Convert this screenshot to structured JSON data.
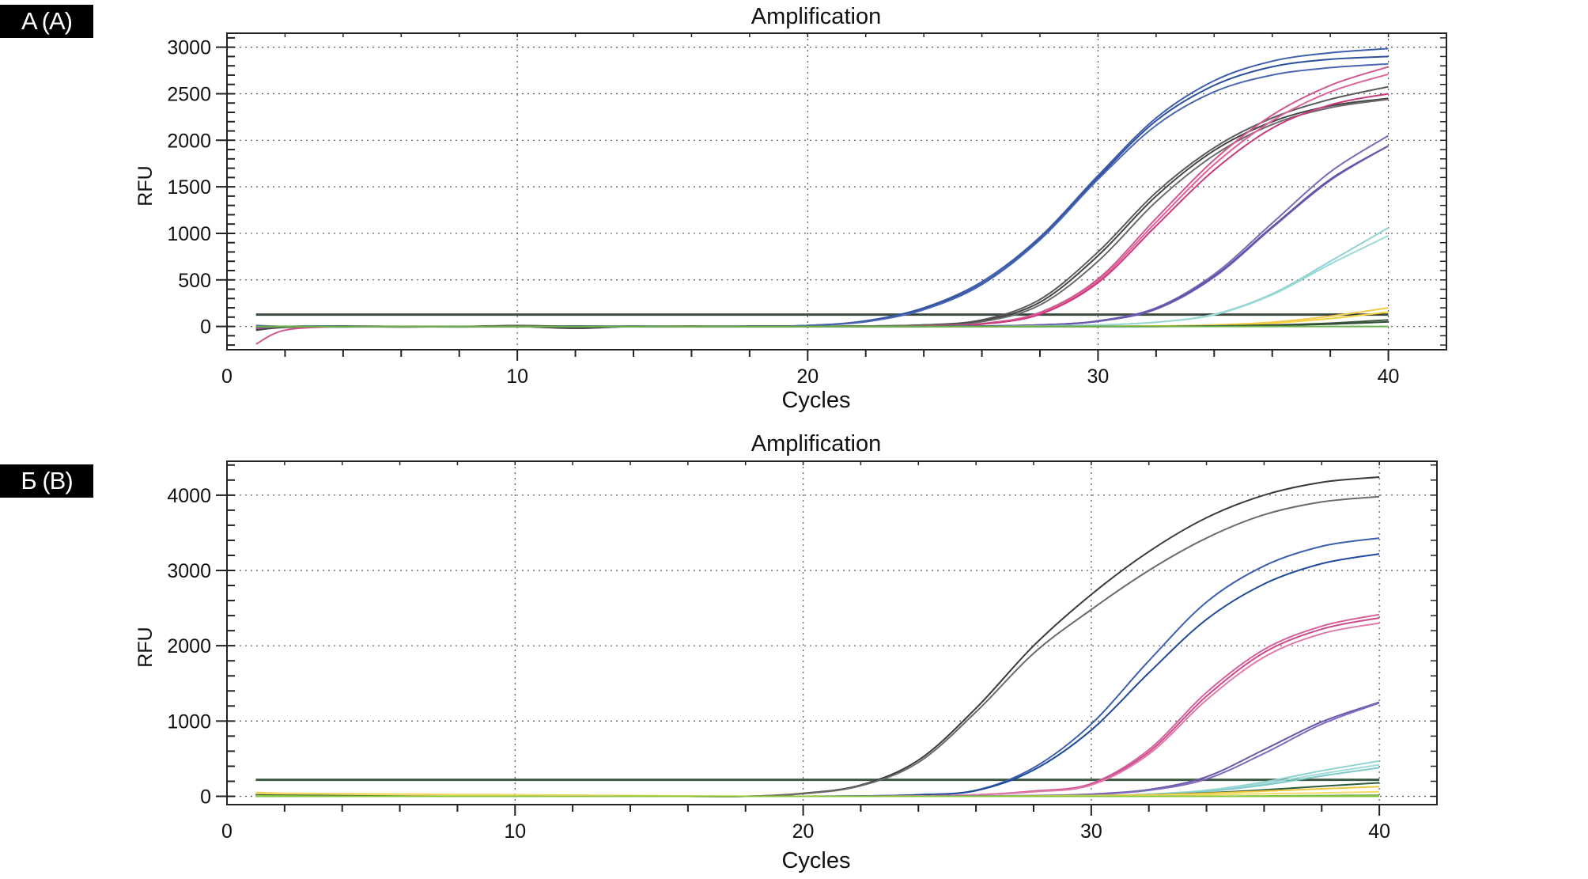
{
  "panels": [
    {
      "label": "A (A)"
    },
    {
      "label": "Б (B)"
    }
  ],
  "chart_data": [
    {
      "type": "line",
      "title": "Amplification",
      "xlabel": "Cycles",
      "ylabel": "RFU",
      "xlim": [
        0,
        42
      ],
      "ylim": [
        -250,
        3150
      ],
      "xticks": [
        0,
        10,
        20,
        30,
        40
      ],
      "yticks": [
        0,
        500,
        1000,
        1500,
        2000,
        2500,
        3000
      ],
      "grid": true,
      "threshold": {
        "value": 127,
        "x_range": [
          1,
          40
        ],
        "color": "#3b4a3f"
      },
      "x": [
        1,
        2,
        4,
        6,
        8,
        10,
        12,
        14,
        16,
        18,
        20,
        22,
        24,
        26,
        28,
        30,
        32,
        34,
        36,
        38,
        40
      ],
      "series": [
        {
          "name": "blue-1",
          "color": "#3f5fae",
          "values": [
            -30,
            0,
            0,
            -5,
            0,
            5,
            0,
            0,
            0,
            5,
            10,
            60,
            200,
            480,
            960,
            1620,
            2240,
            2640,
            2850,
            2940,
            2985
          ]
        },
        {
          "name": "blue-2",
          "color": "#2c4f9e",
          "values": [
            -20,
            0,
            5,
            0,
            0,
            0,
            5,
            0,
            0,
            0,
            10,
            55,
            190,
            460,
            940,
            1600,
            2210,
            2590,
            2790,
            2870,
            2900
          ]
        },
        {
          "name": "blue-3",
          "color": "#4a67b0",
          "values": [
            10,
            0,
            0,
            0,
            -5,
            0,
            0,
            5,
            0,
            0,
            10,
            50,
            180,
            450,
            930,
            1580,
            2160,
            2520,
            2700,
            2780,
            2820
          ]
        },
        {
          "name": "gray-1",
          "color": "#5c5c5c",
          "values": [
            0,
            0,
            -5,
            0,
            0,
            10,
            0,
            0,
            0,
            0,
            0,
            5,
            15,
            70,
            290,
            800,
            1440,
            1920,
            2240,
            2440,
            2575
          ]
        },
        {
          "name": "gray-2",
          "color": "#444444",
          "values": [
            -40,
            -10,
            0,
            0,
            0,
            0,
            -20,
            0,
            0,
            0,
            0,
            5,
            15,
            60,
            260,
            760,
            1400,
            1890,
            2200,
            2370,
            2450
          ]
        },
        {
          "name": "gray-3",
          "color": "#6a6a6a",
          "values": [
            0,
            0,
            0,
            -5,
            0,
            0,
            0,
            0,
            5,
            0,
            0,
            5,
            10,
            50,
            230,
            700,
            1340,
            1840,
            2170,
            2350,
            2440
          ]
        },
        {
          "name": "pink-1",
          "color": "#d0578f",
          "values": [
            -190,
            -40,
            0,
            0,
            0,
            0,
            0,
            0,
            0,
            0,
            0,
            0,
            5,
            30,
            150,
            510,
            1160,
            1790,
            2270,
            2590,
            2790
          ]
        },
        {
          "name": "pink-2",
          "color": "#e0609a",
          "values": [
            -20,
            0,
            0,
            0,
            0,
            0,
            0,
            0,
            0,
            0,
            0,
            0,
            5,
            25,
            140,
            490,
            1120,
            1740,
            2210,
            2520,
            2710
          ]
        },
        {
          "name": "pink-3",
          "color": "#c93a7d",
          "values": [
            0,
            0,
            0,
            0,
            0,
            0,
            0,
            0,
            0,
            0,
            0,
            0,
            5,
            25,
            130,
            470,
            1080,
            1680,
            2130,
            2380,
            2500
          ]
        },
        {
          "name": "purple-1",
          "color": "#7b6ab8",
          "values": [
            -10,
            0,
            0,
            0,
            0,
            0,
            0,
            0,
            0,
            0,
            0,
            0,
            0,
            5,
            15,
            60,
            200,
            560,
            1110,
            1660,
            2050
          ]
        },
        {
          "name": "purple-2",
          "color": "#5b4aa0",
          "values": [
            -10,
            0,
            0,
            0,
            0,
            0,
            0,
            0,
            0,
            0,
            0,
            0,
            0,
            5,
            15,
            55,
            190,
            540,
            1070,
            1580,
            1940
          ]
        },
        {
          "name": "purple-3",
          "color": "#6a58ad",
          "values": [
            0,
            0,
            0,
            0,
            0,
            0,
            0,
            0,
            0,
            0,
            0,
            0,
            0,
            5,
            15,
            55,
            185,
            530,
            1060,
            1570,
            1940
          ]
        },
        {
          "name": "cyan-1",
          "color": "#8fd3d3",
          "values": [
            0,
            0,
            0,
            0,
            0,
            0,
            0,
            0,
            0,
            0,
            0,
            0,
            0,
            0,
            5,
            15,
            45,
            130,
            350,
            700,
            1060
          ]
        },
        {
          "name": "cyan-2",
          "color": "#9ad8d6",
          "values": [
            0,
            0,
            0,
            0,
            0,
            0,
            0,
            0,
            0,
            0,
            0,
            0,
            0,
            0,
            5,
            15,
            45,
            125,
            340,
            670,
            975
          ]
        },
        {
          "name": "yellow-1",
          "color": "#f2c94c",
          "values": [
            0,
            0,
            0,
            0,
            0,
            0,
            0,
            0,
            0,
            0,
            0,
            0,
            0,
            0,
            0,
            0,
            5,
            15,
            45,
            110,
            200
          ]
        },
        {
          "name": "yellow-2",
          "color": "#f5d23a",
          "values": [
            0,
            0,
            0,
            0,
            0,
            0,
            0,
            0,
            0,
            0,
            0,
            0,
            0,
            0,
            0,
            0,
            5,
            12,
            35,
            85,
            155
          ]
        },
        {
          "name": "darkgreen-1",
          "color": "#3d5a3f",
          "values": [
            0,
            0,
            0,
            0,
            0,
            0,
            0,
            0,
            0,
            0,
            0,
            0,
            0,
            0,
            0,
            0,
            0,
            5,
            15,
            35,
            70
          ]
        },
        {
          "name": "darkgreen-2",
          "color": "#2f4a35",
          "values": [
            0,
            0,
            0,
            0,
            0,
            0,
            0,
            0,
            0,
            0,
            0,
            0,
            0,
            0,
            0,
            0,
            0,
            5,
            10,
            25,
            50
          ]
        },
        {
          "name": "green-1",
          "color": "#6ab04c",
          "values": [
            0,
            0,
            0,
            0,
            0,
            0,
            0,
            0,
            0,
            0,
            0,
            0,
            0,
            0,
            0,
            0,
            0,
            0,
            0,
            0,
            0
          ]
        }
      ]
    },
    {
      "type": "line",
      "title": "Amplification",
      "xlabel": "Cycles",
      "ylabel": "RFU",
      "xlim": [
        0,
        42
      ],
      "ylim": [
        -110,
        4450
      ],
      "xticks": [
        0,
        10,
        20,
        30,
        40
      ],
      "yticks": [
        0,
        1000,
        2000,
        3000,
        4000
      ],
      "grid": true,
      "threshold": {
        "value": 220,
        "x_range": [
          1,
          40
        ],
        "color": "#3b5a43"
      },
      "x": [
        1,
        2,
        4,
        6,
        8,
        10,
        12,
        14,
        16,
        18,
        20,
        22,
        24,
        26,
        28,
        30,
        32,
        34,
        36,
        38,
        40
      ],
      "series": [
        {
          "name": "gray-1",
          "color": "#3a3a3a",
          "values": [
            20,
            15,
            10,
            5,
            5,
            5,
            0,
            0,
            0,
            0,
            40,
            150,
            480,
            1170,
            2000,
            2680,
            3250,
            3700,
            4000,
            4170,
            4240
          ]
        },
        {
          "name": "gray-2",
          "color": "#6b6b6b",
          "values": [
            20,
            15,
            10,
            5,
            5,
            5,
            0,
            0,
            0,
            0,
            35,
            140,
            450,
            1120,
            1900,
            2480,
            3000,
            3430,
            3740,
            3910,
            3980
          ]
        },
        {
          "name": "blue-1",
          "color": "#3b5fae",
          "values": [
            10,
            5,
            5,
            5,
            0,
            0,
            0,
            0,
            0,
            0,
            0,
            5,
            20,
            80,
            380,
            960,
            1800,
            2580,
            3060,
            3320,
            3430
          ]
        },
        {
          "name": "blue-2",
          "color": "#1f4b9b",
          "values": [
            10,
            5,
            5,
            5,
            0,
            0,
            0,
            0,
            0,
            0,
            0,
            5,
            20,
            75,
            350,
            880,
            1640,
            2350,
            2820,
            3090,
            3220
          ]
        },
        {
          "name": "pink-1",
          "color": "#d8609c",
          "values": [
            20,
            10,
            5,
            5,
            0,
            0,
            0,
            0,
            0,
            0,
            0,
            0,
            5,
            20,
            70,
            170,
            620,
            1380,
            1950,
            2260,
            2415
          ]
        },
        {
          "name": "pink-2",
          "color": "#c94c8c",
          "values": [
            20,
            10,
            5,
            5,
            0,
            0,
            0,
            0,
            0,
            0,
            0,
            0,
            5,
            20,
            65,
            160,
            590,
            1330,
            1910,
            2220,
            2370
          ]
        },
        {
          "name": "pink-3",
          "color": "#e07aab",
          "values": [
            20,
            10,
            5,
            5,
            0,
            0,
            0,
            0,
            0,
            0,
            0,
            0,
            5,
            20,
            60,
            150,
            560,
            1280,
            1850,
            2160,
            2300
          ]
        },
        {
          "name": "purple-1",
          "color": "#6b58ad",
          "values": [
            10,
            5,
            5,
            0,
            0,
            0,
            0,
            0,
            0,
            0,
            0,
            0,
            0,
            5,
            10,
            30,
            90,
            260,
            620,
            990,
            1250
          ]
        },
        {
          "name": "purple-2",
          "color": "#7e6cbb",
          "values": [
            10,
            5,
            5,
            0,
            0,
            0,
            0,
            0,
            0,
            0,
            0,
            0,
            0,
            5,
            10,
            25,
            80,
            230,
            570,
            960,
            1240
          ]
        },
        {
          "name": "cyan-1",
          "color": "#8ed3d1",
          "values": [
            10,
            5,
            5,
            0,
            0,
            0,
            0,
            0,
            0,
            0,
            0,
            0,
            0,
            0,
            5,
            10,
            30,
            80,
            190,
            340,
            470
          ]
        },
        {
          "name": "cyan-2",
          "color": "#a3dcda",
          "values": [
            10,
            5,
            5,
            0,
            0,
            0,
            0,
            0,
            0,
            0,
            0,
            0,
            0,
            0,
            5,
            10,
            25,
            70,
            170,
            300,
            420
          ]
        },
        {
          "name": "cyan-3",
          "color": "#7fcac8",
          "values": [
            10,
            5,
            5,
            0,
            0,
            0,
            0,
            0,
            0,
            0,
            0,
            0,
            0,
            0,
            5,
            10,
            25,
            65,
            150,
            270,
            380
          ]
        },
        {
          "name": "darkgreen-1",
          "color": "#2f5a3a",
          "values": [
            30,
            20,
            10,
            5,
            0,
            0,
            0,
            0,
            0,
            0,
            0,
            0,
            0,
            0,
            5,
            10,
            20,
            45,
            85,
            135,
            180
          ]
        },
        {
          "name": "yellow-1",
          "color": "#f0c93a",
          "values": [
            50,
            40,
            35,
            30,
            25,
            20,
            15,
            10,
            5,
            0,
            0,
            0,
            0,
            0,
            5,
            10,
            20,
            40,
            70,
            100,
            130
          ]
        },
        {
          "name": "yellow-2",
          "color": "#f5dc6a",
          "values": [
            40,
            35,
            30,
            25,
            20,
            15,
            10,
            5,
            5,
            0,
            0,
            0,
            0,
            0,
            0,
            5,
            10,
            20,
            35,
            45,
            60
          ]
        },
        {
          "name": "green-1",
          "color": "#6ab04c",
          "values": [
            0,
            0,
            0,
            0,
            0,
            0,
            0,
            0,
            0,
            0,
            0,
            0,
            0,
            0,
            0,
            0,
            0,
            0,
            5,
            10,
            15
          ]
        },
        {
          "name": "green-2",
          "color": "#8cc63f",
          "values": [
            5,
            5,
            0,
            0,
            0,
            0,
            0,
            0,
            0,
            0,
            0,
            0,
            0,
            0,
            0,
            0,
            0,
            0,
            0,
            0,
            0
          ]
        }
      ]
    }
  ]
}
